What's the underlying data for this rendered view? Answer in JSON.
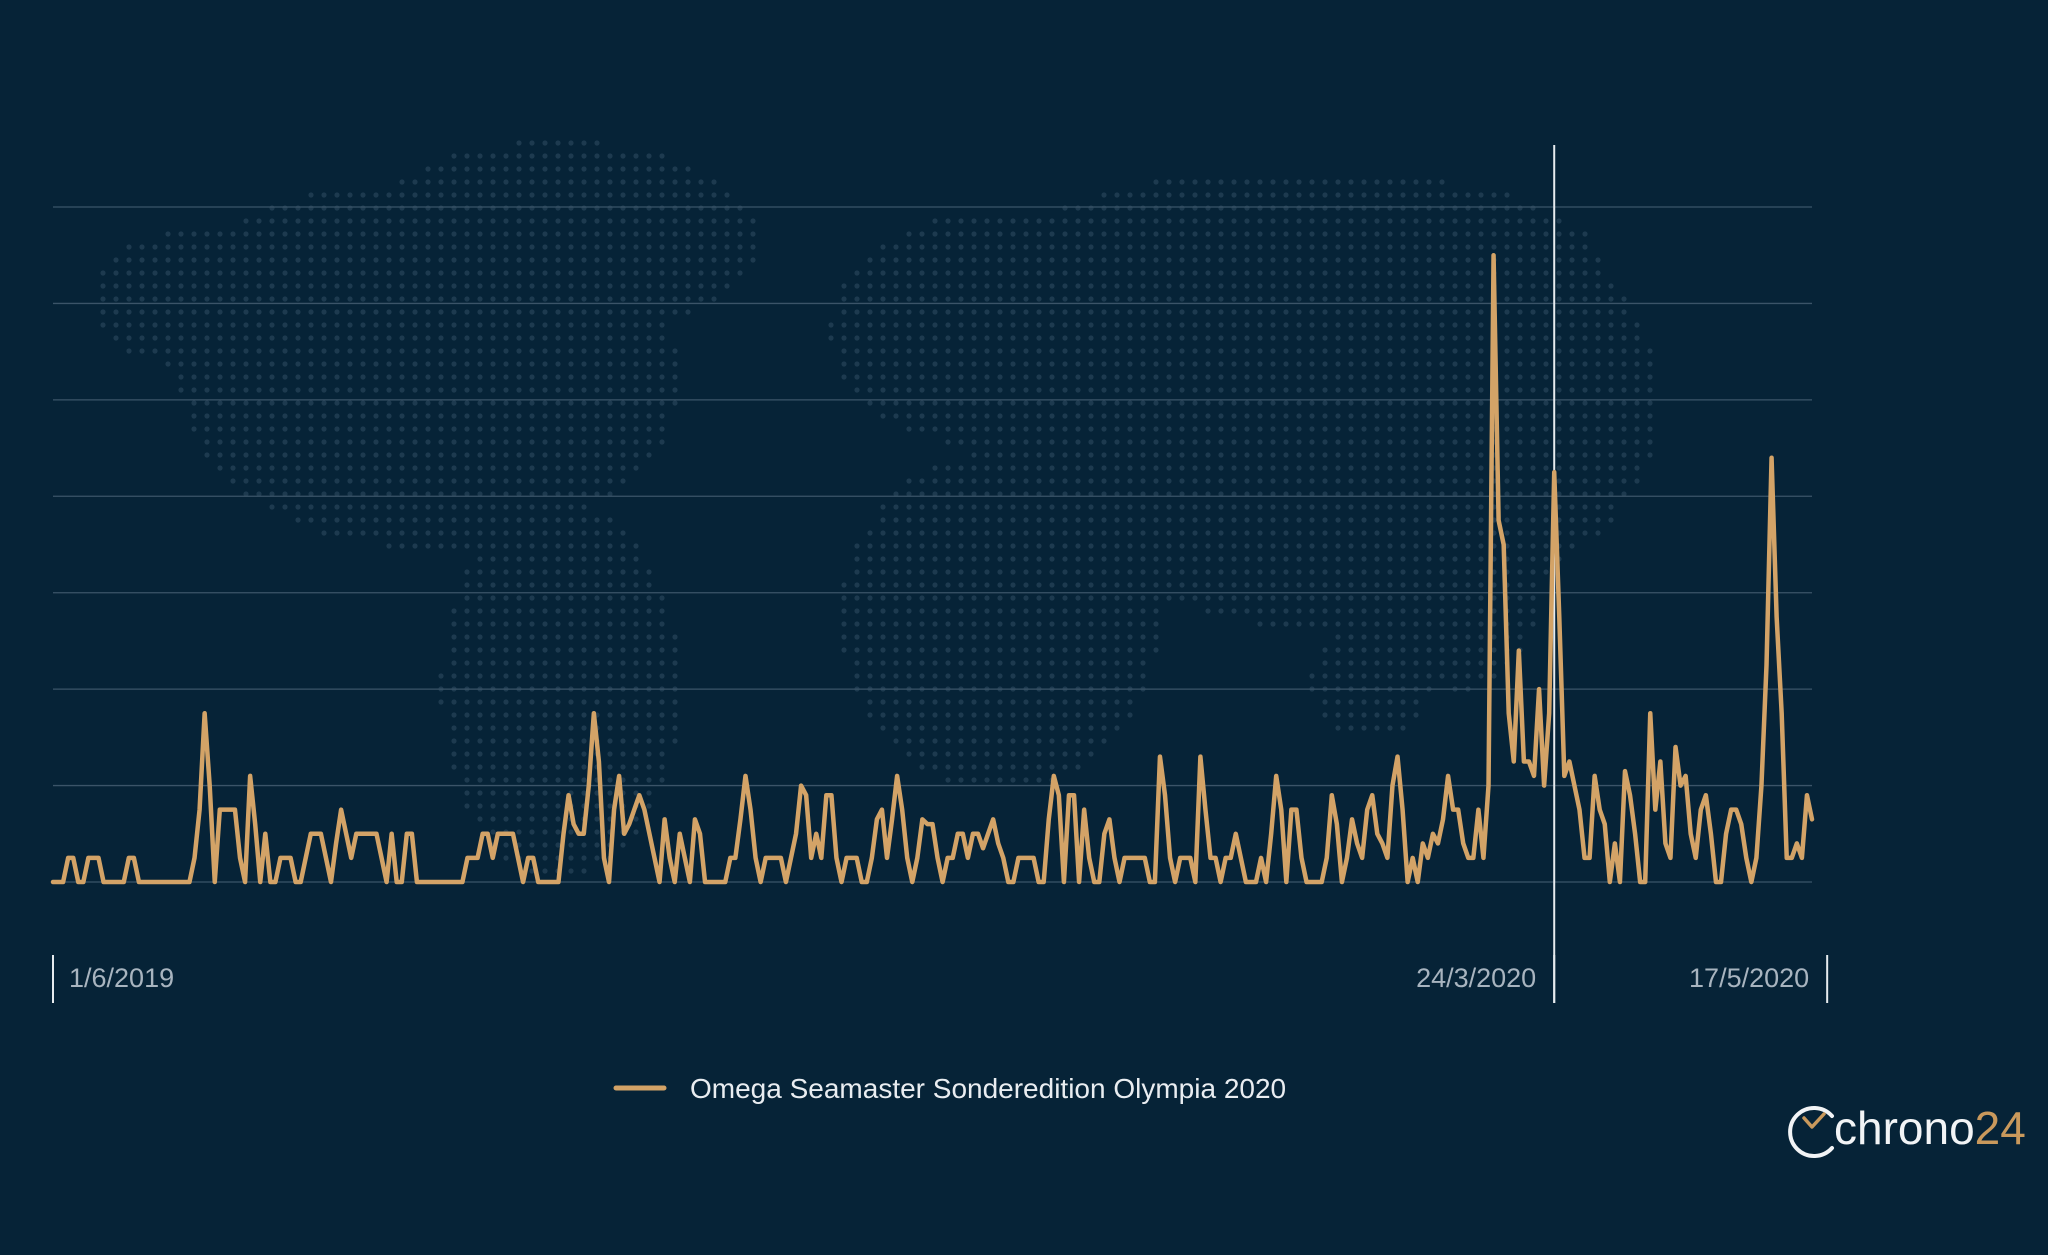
{
  "colors": {
    "background": "#062337",
    "grid": "#3b5468",
    "series": "#d3a367",
    "marker": "#e6ebef",
    "map_dots": "#1d3a4f",
    "tick_text": "#a8b4bf",
    "legend_text": "#e9edf1"
  },
  "logo": {
    "name": "chrono",
    "suffix": "24",
    "icon": "clock-c-icon"
  },
  "chart_data": {
    "type": "line",
    "title": "",
    "xlabel": "",
    "ylabel": "",
    "x_start": "1/6/2019",
    "x_end": "17/5/2020",
    "ylim": [
      0,
      14
    ],
    "grid": true,
    "legend_placement": "bottom-center",
    "background_decoration": "dotted world map",
    "x_ticks": [
      {
        "label": "1/6/2019",
        "date": "1/6/2019",
        "index": 0
      },
      {
        "label": "24/3/2020",
        "date": "24/3/2020",
        "index": 297
      },
      {
        "label": "17/5/2020",
        "date": "17/5/2020",
        "index": 351
      }
    ],
    "marker_line": {
      "date": "24/3/2020",
      "index": 297
    },
    "series": [
      {
        "name": "Omega Seamaster Sonderedition Olympia 2020",
        "values": [
          0,
          0,
          0,
          0.5,
          0.5,
          0,
          0,
          0.5,
          0.5,
          0.5,
          0,
          0,
          0,
          0,
          0,
          0.5,
          0.5,
          0,
          0,
          0,
          0,
          0,
          0,
          0,
          0,
          0,
          0,
          0,
          0.5,
          1.5,
          3.5,
          2,
          0,
          1.5,
          1.5,
          1.5,
          1.5,
          0.5,
          0,
          2.2,
          1.2,
          0,
          1,
          0,
          0,
          0.5,
          0.5,
          0.5,
          0,
          0,
          0.5,
          1,
          1,
          1,
          0.5,
          0,
          0.8,
          1.5,
          1,
          0.5,
          1,
          1,
          1,
          1,
          1,
          0.5,
          0,
          1,
          0,
          0,
          1,
          1,
          0,
          0,
          0,
          0,
          0,
          0,
          0,
          0,
          0,
          0,
          0.5,
          0.5,
          0.5,
          1,
          1,
          0.5,
          1,
          1,
          1,
          1,
          0.5,
          0,
          0.5,
          0.5,
          0,
          0,
          0,
          0,
          0,
          1,
          1.8,
          1.2,
          1,
          1,
          2,
          3.5,
          2.5,
          0.5,
          0,
          1.5,
          2.2,
          1,
          1.2,
          1.5,
          1.8,
          1.5,
          1,
          0.5,
          0,
          1.3,
          0.5,
          0,
          1,
          0.5,
          0,
          1.3,
          1,
          0,
          0,
          0,
          0,
          0,
          0.5,
          0.5,
          1.3,
          2.2,
          1.5,
          0.5,
          0,
          0.5,
          0.5,
          0.5,
          0.5,
          0,
          0.5,
          1,
          2,
          1.8,
          0.5,
          1,
          0.5,
          1.8,
          1.8,
          0.5,
          0,
          0.5,
          0.5,
          0.5,
          0,
          0,
          0.5,
          1.3,
          1.5,
          0.5,
          1.3,
          2.2,
          1.5,
          0.5,
          0,
          0.5,
          1.3,
          1.2,
          1.2,
          0.5,
          0,
          0.5,
          0.5,
          1,
          1,
          0.5,
          1,
          1,
          0.7,
          1,
          1.3,
          0.8,
          0.5,
          0,
          0,
          0.5,
          0.5,
          0.5,
          0.5,
          0,
          0,
          1.3,
          2.2,
          1.8,
          0,
          1.8,
          1.8,
          0,
          1.5,
          0.5,
          0,
          0,
          1,
          1.3,
          0.5,
          0,
          0.5,
          0.5,
          0.5,
          0.5,
          0.5,
          0,
          0,
          2.6,
          1.8,
          0.5,
          0,
          0.5,
          0.5,
          0.5,
          0,
          2.6,
          1.5,
          0.5,
          0.5,
          0,
          0.5,
          0.5,
          1,
          0.5,
          0,
          0,
          0,
          0.5,
          0,
          1,
          2.2,
          1.5,
          0,
          1.5,
          1.5,
          0.5,
          0,
          0,
          0,
          0,
          0.5,
          1.8,
          1.2,
          0,
          0.5,
          1.3,
          0.8,
          0.5,
          1.5,
          1.8,
          1,
          0.8,
          0.5,
          2,
          2.6,
          1.5,
          0,
          0.5,
          0,
          0.8,
          0.5,
          1,
          0.8,
          1.3,
          2.2,
          1.5,
          1.5,
          0.8,
          0.5,
          0.5,
          1.5,
          0.5,
          2,
          13,
          7.5,
          7,
          3.5,
          2.5,
          4.8,
          2.5,
          2.5,
          2.2,
          4,
          2,
          3.5,
          8.5,
          5.5,
          2.2,
          2.5,
          2,
          1.5,
          0.5,
          0.5,
          2.2,
          1.5,
          1.2,
          0,
          0.8,
          0,
          2.3,
          1.8,
          1,
          0,
          0,
          3.5,
          1.5,
          2.5,
          0.8,
          0.5,
          2.8,
          2,
          2.2,
          1,
          0.5,
          1.5,
          1.8,
          1,
          0,
          0,
          1,
          1.5,
          1.5,
          1.2,
          0.5,
          0,
          0.5,
          2,
          4.5,
          8.8,
          5.5,
          3.5,
          0.5,
          0.5,
          0.8,
          0.5,
          1.8,
          1.3
        ]
      }
    ]
  }
}
